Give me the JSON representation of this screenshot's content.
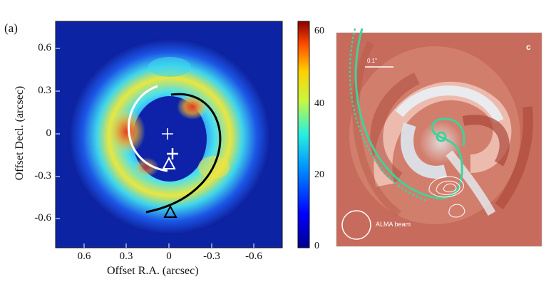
{
  "left_panel": {
    "panel_label": "(a)",
    "ylabel": "Offset Decl. (arcsec)",
    "xlabel": "Offset R.A. (arcsec)",
    "yticks": [
      "0.6",
      "0.3",
      "0",
      "-0.3",
      "-0.6"
    ],
    "xticks": [
      "0.6",
      "0.3",
      "0",
      "-0.3",
      "-0.6"
    ],
    "colorbar_ticks": [
      "60",
      "40",
      "20",
      "0"
    ]
  },
  "right_panel": {
    "panel_letter": "c",
    "scale_label": "0.1\"",
    "beam_label": "ALMA beam"
  },
  "colors": {
    "map_background": "#0a1a8c",
    "ring_blue": "#1f6fff",
    "ring_cyan": "#3ed7f0",
    "ring_yellow": "#f4e23c",
    "ring_red": "#e23a1c",
    "sim_background": "#c76b5c",
    "spiral_green": "#3fd29b"
  }
}
